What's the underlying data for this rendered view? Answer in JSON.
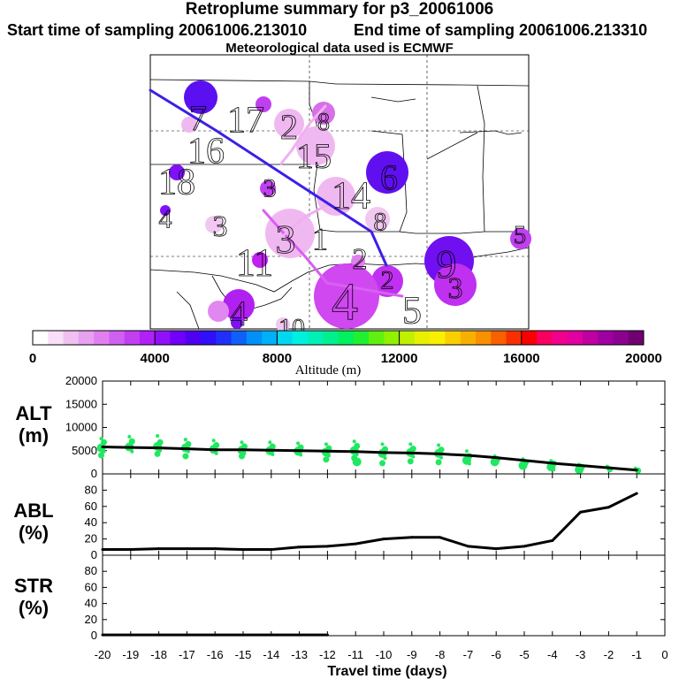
{
  "header": {
    "title": "Retroplume summary for p3_20061006",
    "start": "Start time of sampling 20061006.213010",
    "end": "End time of sampling 20061006.213310",
    "met": "Meteorological data used is ECMWF"
  },
  "colorbar": {
    "label": "Altitude (m)",
    "ticks": [
      "0",
      "4000",
      "8000",
      "12000",
      "16000",
      "20000"
    ],
    "range": [
      0,
      20000
    ],
    "colors": [
      "#ffffff",
      "#f8e0f8",
      "#f0c0f0",
      "#e8a0f0",
      "#e080f0",
      "#d060f0",
      "#c040f0",
      "#b020f8",
      "#9010f8",
      "#7000f8",
      "#5000f0",
      "#3010f8",
      "#2030f8",
      "#1060f8",
      "#0090f8",
      "#00b0f8",
      "#00d8f0",
      "#00f0e0",
      "#00f0b8",
      "#00f090",
      "#00f060",
      "#20f030",
      "#60f010",
      "#90f000",
      "#c0f000",
      "#e8f000",
      "#f8f000",
      "#f8d000",
      "#f8b000",
      "#f89000",
      "#f86000",
      "#f83000",
      "#f80000",
      "#f80060",
      "#f0008c",
      "#e000a0",
      "#c000a0",
      "#a000a0",
      "#8c0090",
      "#700070"
    ]
  },
  "map": {
    "labels": [
      {
        "t": "7",
        "x": 224,
        "y": 133,
        "s": 40
      },
      {
        "t": "17",
        "x": 278,
        "y": 135,
        "s": 42
      },
      {
        "t": "2",
        "x": 327,
        "y": 143,
        "s": 40
      },
      {
        "t": "8",
        "x": 366,
        "y": 137,
        "s": 28
      },
      {
        "t": "16",
        "x": 233,
        "y": 170,
        "s": 42
      },
      {
        "t": "15",
        "x": 355,
        "y": 176,
        "s": 40
      },
      {
        "t": "18",
        "x": 200,
        "y": 205,
        "s": 42
      },
      {
        "t": "6",
        "x": 440,
        "y": 200,
        "s": 40
      },
      {
        "t": "3",
        "x": 305,
        "y": 212,
        "s": 30
      },
      {
        "t": "14",
        "x": 397,
        "y": 220,
        "s": 44
      },
      {
        "t": "4",
        "x": 187,
        "y": 247,
        "s": 30
      },
      {
        "t": "3",
        "x": 249,
        "y": 255,
        "s": 34
      },
      {
        "t": "8",
        "x": 430,
        "y": 250,
        "s": 30
      },
      {
        "t": "5",
        "x": 588,
        "y": 265,
        "s": 28
      },
      {
        "t": "3",
        "x": 323,
        "y": 270,
        "s": 46
      },
      {
        "t": "1",
        "x": 362,
        "y": 270,
        "s": 36
      },
      {
        "t": "9",
        "x": 505,
        "y": 298,
        "s": 46
      },
      {
        "t": "11",
        "x": 288,
        "y": 296,
        "s": 44
      },
      {
        "t": "2",
        "x": 407,
        "y": 292,
        "s": 34
      },
      {
        "t": "2",
        "x": 438,
        "y": 316,
        "s": 30
      },
      {
        "t": "3",
        "x": 515,
        "y": 325,
        "s": 34
      },
      {
        "t": "4",
        "x": 390,
        "y": 340,
        "s": 60
      },
      {
        "t": "5",
        "x": 466,
        "y": 350,
        "s": 44
      },
      {
        "t": "4",
        "x": 270,
        "y": 354,
        "s": 40
      },
      {
        "t": "10",
        "x": 330,
        "y": 370,
        "s": 30
      }
    ]
  },
  "panels": {
    "alt": {
      "label1": "ALT",
      "label2": "(m)"
    },
    "abl": {
      "label1": "ABL",
      "label2": "(%)"
    },
    "str": {
      "label1": "STR",
      "label2": "(%)"
    }
  },
  "chart_data": [
    {
      "type": "line",
      "title": "ALT (m)",
      "xlabel": "Travel time (days)",
      "ylabel": "ALT (m)",
      "xlim": [
        -20,
        0
      ],
      "ylim": [
        0,
        20000
      ],
      "xticks": [
        -20,
        -19,
        -18,
        -17,
        -16,
        -15,
        -14,
        -13,
        -12,
        -11,
        -10,
        -9,
        -8,
        -7,
        -6,
        -5,
        -4,
        -3,
        -2,
        -1,
        0
      ],
      "yticks": [
        0,
        5000,
        10000,
        15000,
        20000
      ],
      "x": [
        -20,
        -19,
        -18,
        -17,
        -16,
        -15,
        -14,
        -13,
        -12,
        -11,
        -10,
        -9,
        -8,
        -7,
        -6,
        -5,
        -4,
        -3,
        -2,
        -1
      ],
      "values": [
        5800,
        5700,
        5600,
        5400,
        5200,
        5200,
        5100,
        5000,
        4900,
        4800,
        4600,
        4500,
        4300,
        4000,
        3500,
        2900,
        2300,
        1800,
        1300,
        800
      ],
      "scatter_spread": [
        [
          7600,
          6800,
          5600,
          4800,
          4000
        ],
        [
          8000,
          7000,
          5800,
          4800
        ],
        [
          8200,
          6800,
          5900,
          5000,
          4300
        ],
        [
          7400,
          6400,
          5600,
          4800,
          3800
        ],
        [
          7200,
          6200,
          5300,
          4400
        ],
        [
          6800,
          5900,
          5100,
          4400,
          3800
        ],
        [
          6800,
          5900,
          5000,
          4200
        ],
        [
          6600,
          5700,
          4900,
          4100
        ],
        [
          6400,
          5500,
          4700,
          3900,
          3100
        ],
        [
          7000,
          6000,
          5000,
          4200,
          3400,
          2600
        ],
        [
          6400,
          5300,
          4400,
          3400,
          2300
        ],
        [
          6400,
          5400,
          4600,
          3700,
          2700
        ],
        [
          6200,
          5200,
          4400,
          3500,
          2500
        ],
        [
          4900,
          3800,
          2900,
          2200
        ],
        [
          3800,
          3200,
          2600
        ],
        [
          3200,
          2400,
          1800
        ],
        [
          2800,
          2200,
          1500,
          900
        ],
        [
          2000,
          1500,
          900
        ],
        [
          1600,
          1000
        ],
        [
          1200,
          700
        ]
      ]
    },
    {
      "type": "line",
      "title": "ABL (%)",
      "xlabel": "Travel time (days)",
      "ylabel": "ABL (%)",
      "xlim": [
        -20,
        0
      ],
      "ylim": [
        0,
        100
      ],
      "yticks": [
        0,
        20,
        40,
        60,
        80
      ],
      "x": [
        -20,
        -19,
        -18,
        -17,
        -16,
        -15,
        -14,
        -13,
        -12,
        -11,
        -10,
        -9,
        -8,
        -7,
        -6,
        -5,
        -4,
        -3,
        -2,
        -1
      ],
      "values": [
        7,
        7,
        8,
        8,
        8,
        7,
        7,
        10,
        11,
        14,
        20,
        22,
        22,
        11,
        8,
        11,
        18,
        53,
        59,
        76
      ]
    },
    {
      "type": "line",
      "title": "STR (%)",
      "xlabel": "Travel time (days)",
      "ylabel": "STR (%)",
      "xlim": [
        -20,
        0
      ],
      "ylim": [
        0,
        100
      ],
      "yticks": [
        0,
        20,
        40,
        60,
        80
      ],
      "x": [
        -20,
        -19,
        -18,
        -17,
        -16,
        -15,
        -14,
        -13,
        -12
      ],
      "values": [
        1,
        1,
        1,
        1,
        1,
        1,
        1,
        1,
        1
      ]
    }
  ]
}
